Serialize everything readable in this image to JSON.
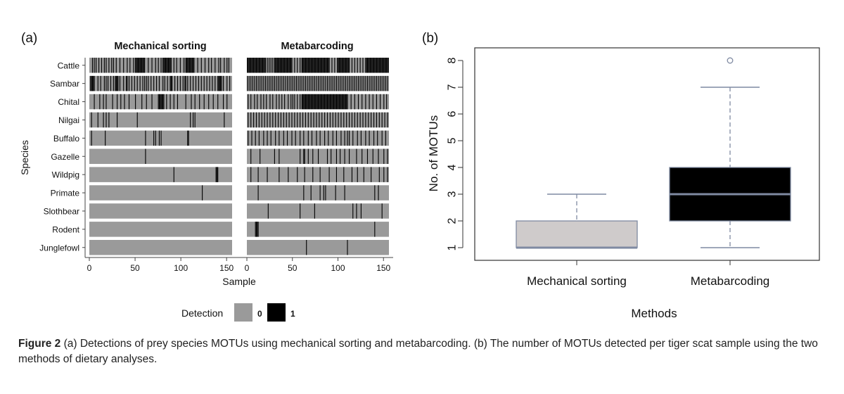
{
  "colors": {
    "absent": "#9a9a9a",
    "present": "#000000",
    "box1": "#cfcbcb",
    "box2": "#000000",
    "median": "#7f8aa2",
    "whisker": "#7f8aa2"
  },
  "chart_data": [
    {
      "type": "heatmap",
      "label": "(a)",
      "panels": [
        "Mechanical sorting",
        "Metabarcoding"
      ],
      "ylabel": "Species",
      "xlabel": "Sample",
      "xlim": [
        0,
        156
      ],
      "xticks": [
        0,
        50,
        100,
        150
      ],
      "species": [
        "Cattle",
        "Sambar",
        "Chital",
        "Nilgai",
        "Buffalo",
        "Gazelle",
        "Wildpig",
        "Primate",
        "Slothbear",
        "Rodent",
        "Junglefowl"
      ],
      "legend": {
        "title": "Detection",
        "entries": [
          "0",
          "1"
        ]
      },
      "detections": {
        "Mechanical sorting": {
          "Cattle": [
            3,
            5,
            7,
            10,
            13,
            16,
            18,
            21,
            24,
            26,
            29,
            33,
            37,
            41,
            44,
            48,
            50,
            51,
            52,
            53,
            54,
            55,
            56,
            57,
            58,
            59,
            60,
            64,
            68,
            72,
            75,
            78,
            80,
            81,
            82,
            83,
            84,
            85,
            86,
            87,
            88,
            89,
            92,
            95,
            99,
            103,
            105,
            106,
            107,
            108,
            109,
            110,
            111,
            112,
            113,
            114,
            118,
            122,
            126,
            130,
            133,
            137,
            141,
            143,
            147,
            150,
            152
          ],
          "Sambar": [
            1,
            2,
            3,
            4,
            5,
            9,
            12,
            16,
            18,
            20,
            23,
            26,
            28,
            29,
            30,
            31,
            33,
            37,
            40,
            41,
            43,
            46,
            49,
            52,
            55,
            58,
            60,
            62,
            64,
            67,
            70,
            73,
            76,
            80,
            82,
            85,
            88,
            89,
            90,
            93,
            96,
            99,
            102,
            104,
            105,
            107,
            110,
            113,
            116,
            119,
            122,
            125,
            128,
            131,
            134,
            137,
            140,
            141,
            142,
            143,
            144,
            146,
            150,
            153
          ],
          "Chital": [
            5,
            11,
            15,
            18,
            25,
            30,
            34,
            38,
            43,
            50,
            57,
            62,
            68,
            75,
            76,
            77,
            78,
            79,
            80,
            81,
            84,
            88,
            92,
            96,
            105,
            111,
            115,
            120,
            125,
            130,
            135,
            140,
            146,
            150
          ],
          "Nilgai": [
            2,
            9,
            15,
            18,
            21,
            30,
            52,
            110,
            113,
            115,
            147
          ],
          "Buffalo": [
            2,
            17,
            61,
            70,
            72,
            76,
            78,
            107,
            108
          ],
          "Gazelle": [
            61
          ],
          "Wildpig": [
            92,
            138,
            139,
            140
          ],
          "Primate": [
            123
          ],
          "Slothbear": [],
          "Rodent": [],
          "Junglefowl": []
        },
        "Metabarcoding": {
          "Cattle": [
            0,
            1,
            2,
            3,
            4,
            5,
            6,
            7,
            8,
            9,
            10,
            11,
            12,
            13,
            14,
            15,
            16,
            17,
            18,
            19,
            20,
            22,
            24,
            26,
            28,
            30,
            31,
            32,
            33,
            34,
            35,
            36,
            37,
            38,
            39,
            40,
            41,
            42,
            43,
            44,
            45,
            46,
            47,
            48,
            49,
            52,
            55,
            58,
            60,
            61,
            62,
            63,
            64,
            65,
            66,
            67,
            68,
            69,
            70,
            71,
            72,
            73,
            74,
            75,
            76,
            77,
            78,
            79,
            80,
            81,
            82,
            83,
            84,
            85,
            86,
            87,
            88,
            89,
            90,
            93,
            96,
            99,
            100,
            101,
            102,
            103,
            104,
            105,
            106,
            107,
            108,
            109,
            110,
            111,
            112,
            115,
            118,
            121,
            124,
            127,
            130,
            131,
            132,
            133,
            134,
            135,
            136,
            137,
            138,
            139,
            140,
            141,
            142,
            143,
            144,
            145,
            146,
            147,
            148,
            149,
            150,
            151,
            152,
            153,
            154,
            155
          ],
          "Sambar": [
            0,
            2,
            4,
            6,
            8,
            10,
            12,
            14,
            16,
            18,
            20,
            22,
            24,
            26,
            28,
            30,
            32,
            34,
            36,
            38,
            40,
            42,
            44,
            46,
            48,
            50,
            52,
            54,
            56,
            58,
            60,
            62,
            64,
            66,
            68,
            70,
            72,
            74,
            76,
            78,
            80,
            82,
            84,
            86,
            88,
            90,
            92,
            94,
            96,
            98,
            100,
            102,
            104,
            106,
            108,
            110,
            112,
            114,
            116,
            118,
            120,
            122,
            124,
            126,
            128,
            130,
            132,
            134,
            136,
            138,
            140,
            142,
            144,
            146,
            148,
            150,
            152,
            154
          ],
          "Chital": [
            1,
            4,
            8,
            11,
            15,
            18,
            21,
            25,
            28,
            32,
            35,
            38,
            41,
            45,
            48,
            50,
            52,
            55,
            58,
            60,
            61,
            62,
            63,
            64,
            65,
            66,
            67,
            68,
            69,
            70,
            71,
            72,
            73,
            74,
            75,
            76,
            77,
            78,
            79,
            80,
            81,
            82,
            83,
            84,
            85,
            86,
            87,
            88,
            89,
            90,
            91,
            92,
            93,
            94,
            95,
            96,
            97,
            98,
            99,
            100,
            101,
            102,
            103,
            104,
            105,
            106,
            107,
            108,
            109,
            110,
            114,
            118,
            122,
            126,
            130,
            134,
            138,
            142,
            146,
            150,
            153
          ],
          "Nilgai": [
            1,
            4,
            7,
            10,
            13,
            16,
            19,
            22,
            25,
            28,
            31,
            34,
            37,
            40,
            43,
            46,
            49,
            52,
            55,
            58,
            61,
            64,
            67,
            70,
            73,
            76,
            79,
            82,
            85,
            88,
            91,
            94,
            97,
            100,
            103,
            106,
            109,
            112,
            115,
            118,
            121,
            124,
            127,
            130,
            133,
            136,
            139,
            142,
            145,
            148,
            151,
            154
          ],
          "Buffalo": [
            1,
            5,
            9,
            13,
            18,
            22,
            26,
            31,
            35,
            40,
            44,
            49,
            53,
            58,
            62,
            67,
            71,
            76,
            80,
            85,
            89,
            94,
            98,
            103,
            107,
            110,
            112,
            116,
            121,
            125,
            130,
            134,
            139,
            143,
            148,
            152
          ],
          "Gazelle": [
            4,
            14,
            30,
            35,
            58,
            62,
            63,
            67,
            72,
            78,
            88,
            92,
            98,
            102,
            107,
            112,
            120,
            126,
            132,
            138,
            144,
            150,
            154
          ],
          "Wildpig": [
            4,
            12,
            22,
            35,
            45,
            55,
            63,
            72,
            80,
            90,
            98,
            106,
            115,
            121,
            128,
            136,
            145,
            150,
            154
          ],
          "Primate": [
            12,
            62,
            70,
            80,
            84,
            86,
            97,
            107,
            140,
            144
          ],
          "Slothbear": [
            23,
            58,
            74,
            116,
            120,
            125,
            148
          ],
          "Rodent": [
            9,
            10,
            11,
            12,
            140
          ],
          "Junglefowl": [
            65,
            110
          ]
        }
      }
    },
    {
      "type": "boxplot",
      "label": "(b)",
      "xlabel": "Methods",
      "ylabel": "No. of MOTUs",
      "ylim": [
        0.7,
        8.4
      ],
      "yticks": [
        1,
        2,
        3,
        4,
        5,
        6,
        7,
        8
      ],
      "categories": [
        "Mechanical sorting",
        "Metabarcoding"
      ],
      "boxes": [
        {
          "name": "Mechanical sorting",
          "min": 1,
          "q1": 1,
          "median": 1,
          "q3": 2,
          "max": 3,
          "outliers": []
        },
        {
          "name": "Metabarcoding",
          "min": 1,
          "q1": 2,
          "median": 3,
          "q3": 4,
          "max": 7,
          "outliers": [
            8
          ]
        }
      ]
    }
  ],
  "caption": {
    "label": "Figure 2",
    "text": " (a) Detections of prey species MOTUs using mechanical sorting and metabarcoding. (b) The number of MOTUs detected per tiger scat sample using the two methods of dietary analyses."
  }
}
